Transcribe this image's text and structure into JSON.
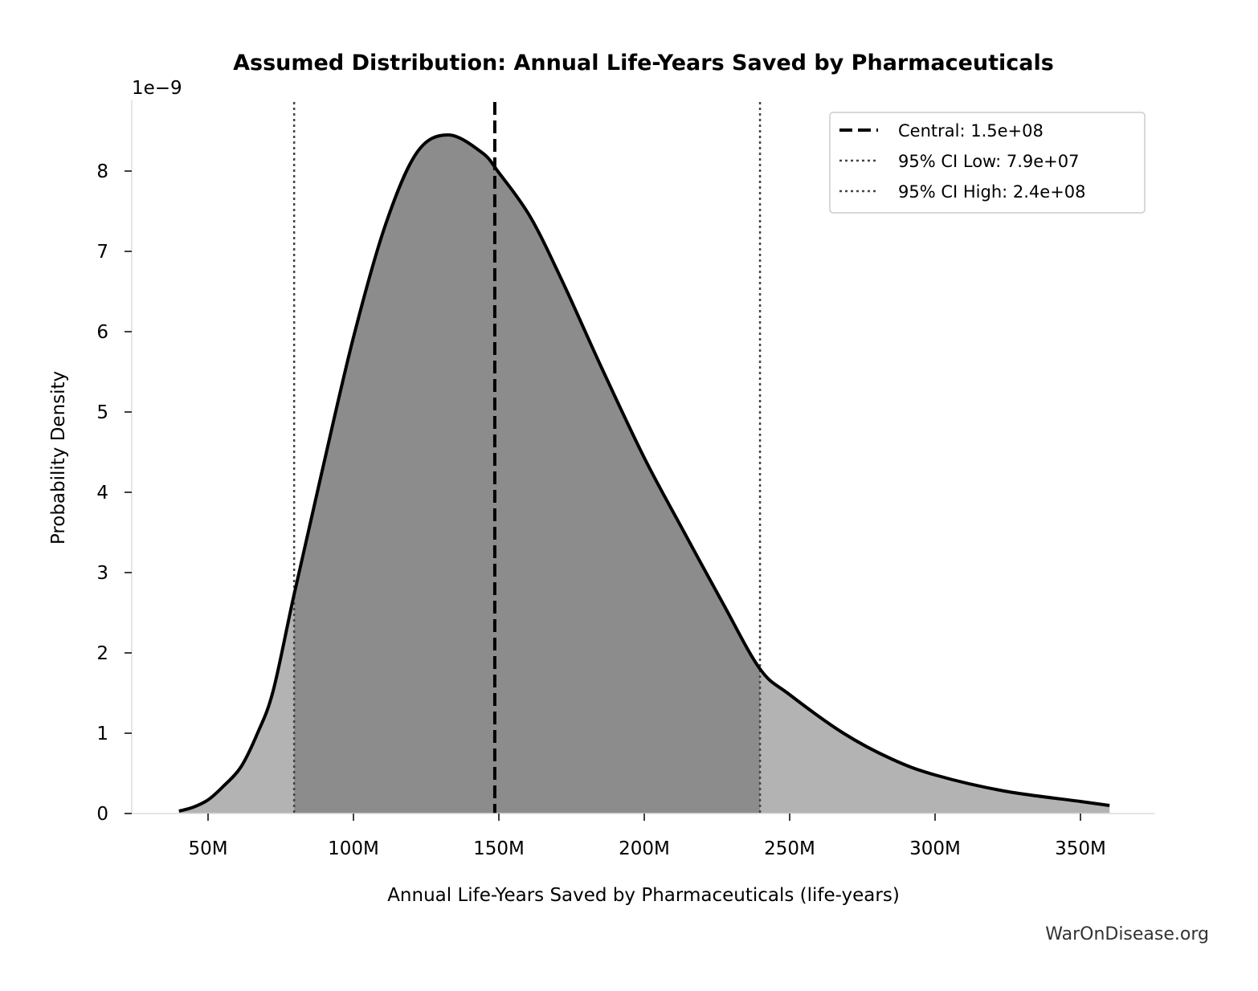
{
  "chart_data": {
    "type": "area",
    "title": "Assumed Distribution: Annual Life-Years Saved by Pharmaceuticals",
    "xlabel": "Annual Life-Years Saved by Pharmaceuticals (life-years)",
    "ylabel": "Probability Density",
    "y_scale_label": "1e−9",
    "xlim": [
      26,
      375
    ],
    "ylim": [
      0,
      8.85
    ],
    "x_ticks": [
      50,
      100,
      150,
      200,
      250,
      300,
      350
    ],
    "x_tick_labels": [
      "50M",
      "100M",
      "150M",
      "200M",
      "250M",
      "300M",
      "350M"
    ],
    "y_ticks": [
      0,
      1,
      2,
      3,
      4,
      5,
      6,
      7,
      8
    ],
    "y_tick_labels": [
      "0",
      "1",
      "2",
      "3",
      "4",
      "5",
      "6",
      "7",
      "8"
    ],
    "x_units": "millions of life-years",
    "y_units": "1e-9",
    "grid": false,
    "series": [
      {
        "x": [
          40,
          45,
          50,
          55,
          61.3,
          67,
          72.4,
          79.6,
          89,
          100,
          111,
          121.8,
          132.6,
          144.2,
          150,
          160.8,
          171.8,
          185.6,
          200,
          213.3,
          227,
          239.8,
          250,
          268.5,
          285,
          300,
          323.8,
          350,
          360
        ],
        "y": [
          0.03,
          0.08,
          0.17,
          0.33,
          0.58,
          1.0,
          1.53,
          2.73,
          4.23,
          5.93,
          7.33,
          8.23,
          8.45,
          8.23,
          7.98,
          7.43,
          6.63,
          5.53,
          4.43,
          3.53,
          2.62,
          1.8,
          1.48,
          1.0,
          0.68,
          0.48,
          0.28,
          0.15,
          0.1
        ]
      }
    ],
    "vlines": [
      {
        "label": "Central: 1.5e+08",
        "x": 148.6,
        "style": "dashed",
        "color": "#000000"
      },
      {
        "label": "95% CI Low: 7.9e+07",
        "x": 79.6,
        "style": "dotted",
        "color": "#444444"
      },
      {
        "label": "95% CI High: 2.4e+08",
        "x": 239.8,
        "style": "dotted",
        "color": "#444444"
      }
    ],
    "fill_outer_color": "#b3b3b3",
    "fill_ci_color": "#8c8c8c",
    "line_color": "#000000",
    "legend_position": "top-right"
  },
  "watermark": "WarOnDisease.org"
}
